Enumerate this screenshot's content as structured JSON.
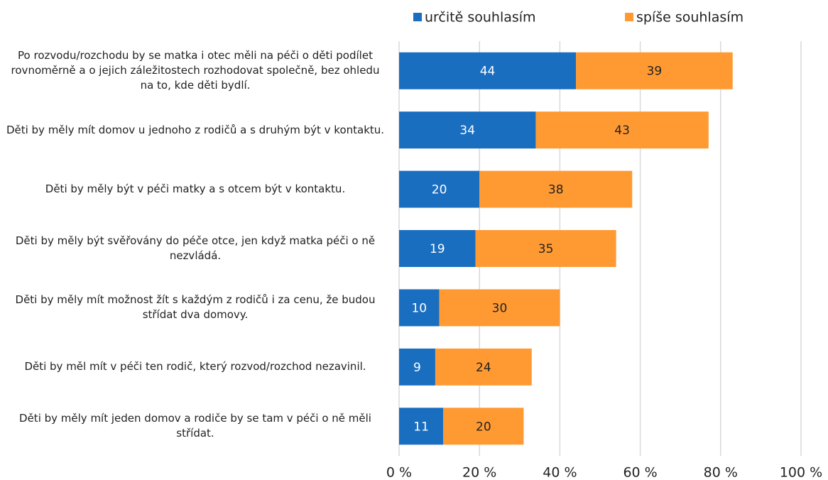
{
  "chart_data": {
    "type": "stacked_barh",
    "categories": [
      "Po rozvodu/rozchodu by se matka i otec měli na péči o děti podílet rovnoměrně a o jejich záležitostech rozhodovat společně, bez ohledu na to, kde děti bydlí.",
      "Děti by měly mít domov u jednoho z rodičů a s druhým být v kontaktu.",
      "Děti by měly být v péči matky a s otcem být v kontaktu.",
      "Děti by měly být svěřovány do péče otce, jen když matka péči o ně nezvládá.",
      "Děti by měly mít možnost žít s každým z rodičů i za cenu, že budou střídat dva domovy.",
      "Děti by měl mít v péči ten rodič, který rozvod/rozchod nezavinil.",
      "Děti by měly mít jeden domov a rodiče by se tam v péči o ně měli střídat."
    ],
    "series": [
      {
        "name": "určitě souhlasím",
        "color": "#1a6ec0",
        "values": [
          44,
          34,
          20,
          19,
          10,
          9,
          11
        ]
      },
      {
        "name": "spíše souhlasím",
        "color": "#ff9a33",
        "values": [
          39,
          43,
          38,
          35,
          30,
          24,
          20
        ]
      }
    ],
    "xlim": [
      0,
      100
    ],
    "xticks": [
      {
        "value": 0,
        "label": "0 %"
      },
      {
        "value": 20,
        "label": "20 %"
      },
      {
        "value": 40,
        "label": "40 %"
      },
      {
        "value": 60,
        "label": "60 %"
      },
      {
        "value": 80,
        "label": "80 %"
      },
      {
        "value": 100,
        "label": "100 %"
      }
    ],
    "grid": true,
    "legend": "top"
  }
}
